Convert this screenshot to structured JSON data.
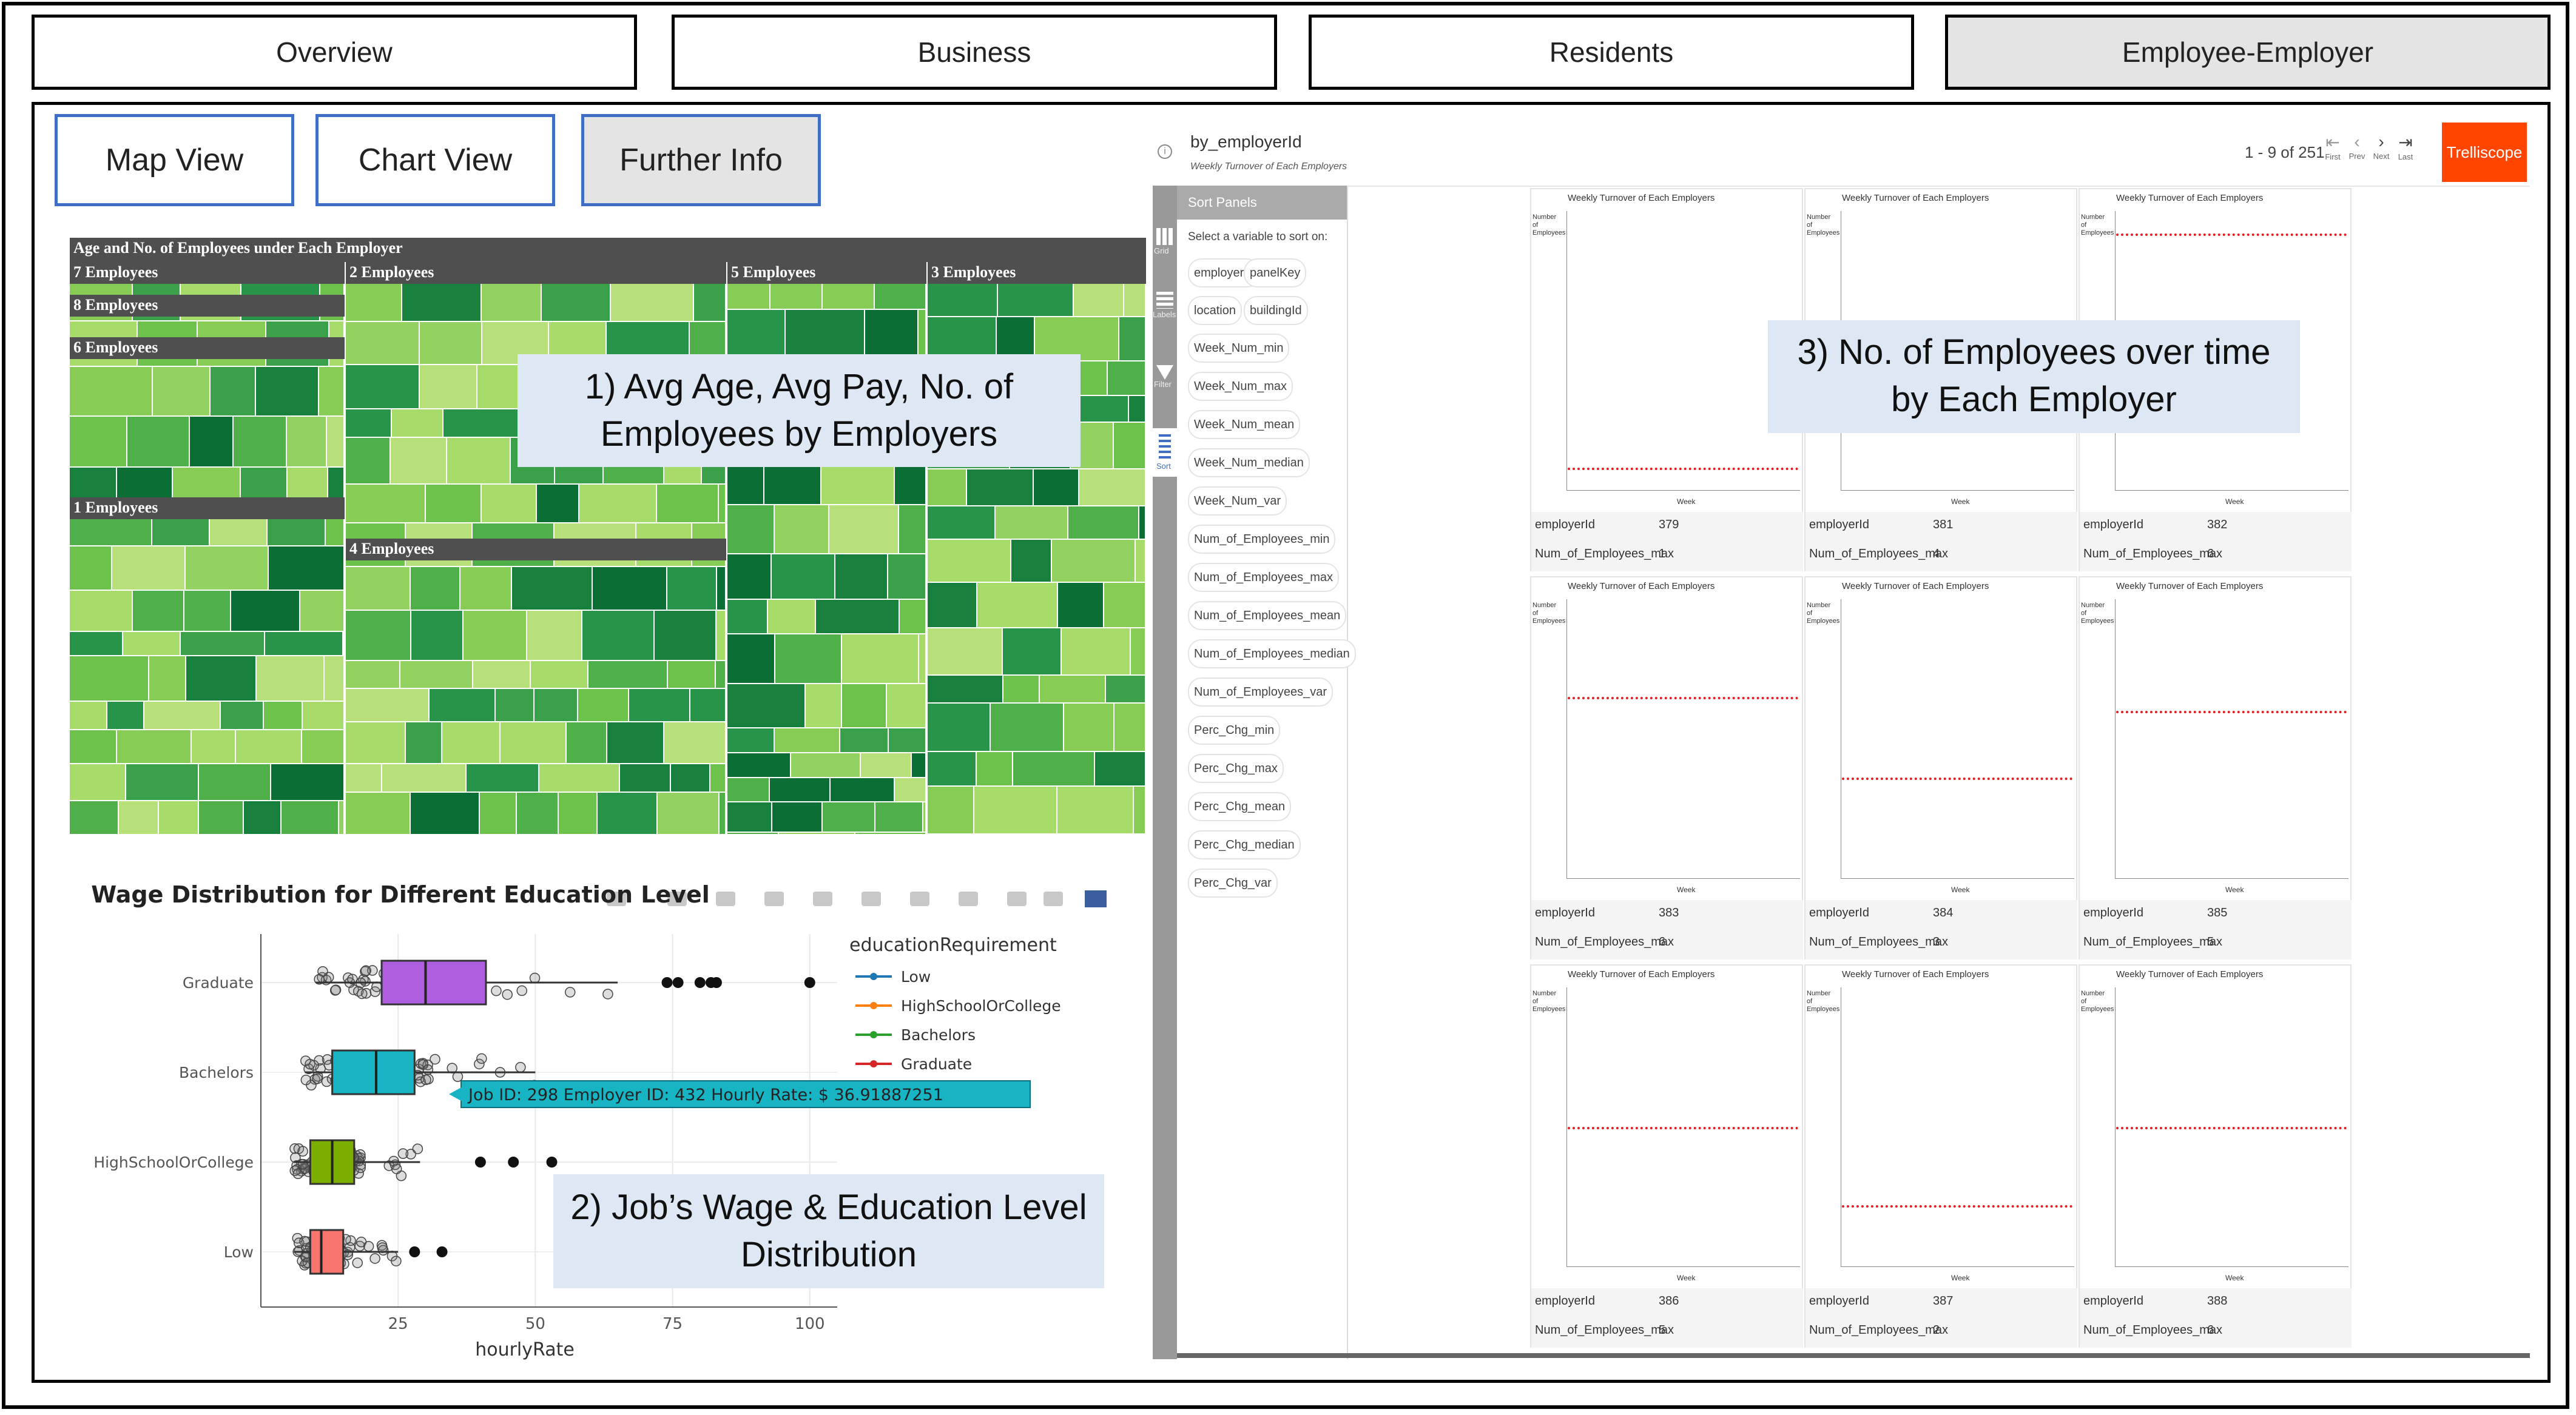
{
  "top_tabs": [
    {
      "label": "Overview",
      "active": false
    },
    {
      "label": "Business",
      "active": false
    },
    {
      "label": "Residents",
      "active": false
    },
    {
      "label": "Employee-Employer",
      "active": true
    }
  ],
  "sub_tabs": [
    {
      "label": "Map View",
      "active": false
    },
    {
      "label": "Chart View",
      "active": false
    },
    {
      "label": "Further Info",
      "active": true
    }
  ],
  "treemap": {
    "title": "Age and No. of Employees under Each Employer",
    "groups": [
      "7 Employees",
      "2 Employees",
      "5 Employees",
      "3 Employees",
      "8 Employees",
      "6 Employees",
      "1 Employees",
      "4 Employees"
    ],
    "callout": [
      "1) Avg Age, Avg Pay, No. of",
      "Employees by Employers"
    ]
  },
  "boxplot": {
    "title": "Wage Distribution for Different Education Level",
    "callout": [
      "2) Job’s Wage & Education Level",
      "Distribution"
    ],
    "tooltip": "Job ID:  298 Employer ID:  432 Hourly Rate: $ 36.91887251"
  },
  "trelliscope": {
    "name": "by_employerId",
    "subtitle": "Weekly Turnover of Each Employers",
    "pager": "1 - 9 of 251",
    "pager_labels": [
      "First",
      "Prev",
      "Next",
      "Last"
    ],
    "brand": "Trelliscope",
    "sidebar_icons": [
      "Grid",
      "Labels",
      "Filter",
      "Sort"
    ],
    "sort_header": "Sort Panels",
    "sort_hint": "Select a variable to sort on:",
    "sort_vars": [
      "employerId",
      "panelKey",
      "location",
      "buildingId",
      "Week_Num_min",
      "Week_Num_max",
      "Week_Num_mean",
      "Week_Num_median",
      "Week_Num_var",
      "Num_of_Employees_min",
      "Num_of_Employees_max",
      "Num_of_Employees_mean",
      "Num_of_Employees_median",
      "Num_of_Employees_var",
      "Perc_Chg_min",
      "Perc_Chg_max",
      "Perc_Chg_mean",
      "Perc_Chg_median",
      "Perc_Chg_var"
    ],
    "callout": [
      "3) No. of Employees over time",
      "by Each Employer"
    ],
    "panel_title": "Weekly Turnover of Each Employers",
    "panel_ylabel": "Number of Employees",
    "panel_xlabel": "Week",
    "meta_keys": [
      "employerId",
      "Num_of_Employees_max"
    ],
    "panels": [
      {
        "employerId": "379",
        "max": "1"
      },
      {
        "employerId": "381",
        "max": "4"
      },
      {
        "employerId": "382",
        "max": "6"
      },
      {
        "employerId": "383",
        "max": "6"
      },
      {
        "employerId": "384",
        "max": "3"
      },
      {
        "employerId": "385",
        "max": "5"
      },
      {
        "employerId": "386",
        "max": "5"
      },
      {
        "employerId": "387",
        "max": "2"
      },
      {
        "employerId": "388",
        "max": "6"
      }
    ]
  },
  "chart_data": {
    "type": "box",
    "title": "Wage Distribution for Different Education Level",
    "xlabel": "hourlyRate",
    "ylabel": "",
    "xlim": [
      0,
      105
    ],
    "xticks": [
      25,
      50,
      75,
      100
    ],
    "categories": [
      "Graduate",
      "Bachelors",
      "HighSchoolOrCollege",
      "Low"
    ],
    "legend_title": "educationRequirement",
    "legend_position": "top-right",
    "series": [
      {
        "name": "Graduate",
        "color": "#b05ee0",
        "stroke": "#d62728",
        "q1": 22,
        "median": 30,
        "q3": 41,
        "min": 10,
        "max": 65,
        "outliers": [
          74,
          76,
          80,
          82,
          83,
          100
        ]
      },
      {
        "name": "Bachelors",
        "color": "#17b4c4",
        "stroke": "#2ca02c",
        "q1": 13,
        "median": 21,
        "q3": 28,
        "min": 8,
        "max": 50,
        "outliers": []
      },
      {
        "name": "HighSchoolOrCollege",
        "color": "#7cae00",
        "stroke": "#ff7f0e",
        "q1": 9,
        "median": 13,
        "q3": 17,
        "min": 6,
        "max": 29,
        "outliers": [
          40,
          46,
          53
        ]
      },
      {
        "name": "Low",
        "color": "#f8766d",
        "stroke": "#1f77b4",
        "q1": 9,
        "median": 11,
        "q3": 15,
        "min": 6,
        "max": 25,
        "outliers": [
          28,
          33
        ]
      }
    ],
    "legend": [
      {
        "name": "Low",
        "color": "#1f77b4"
      },
      {
        "name": "HighSchoolOrCollege",
        "color": "#ff7f0e"
      },
      {
        "name": "Bachelors",
        "color": "#2ca02c"
      },
      {
        "name": "Graduate",
        "color": "#d62728"
      }
    ]
  }
}
